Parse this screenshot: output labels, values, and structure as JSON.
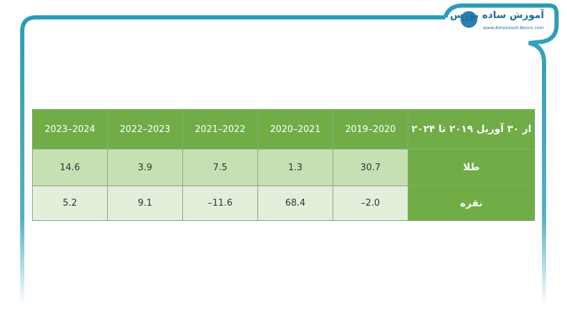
{
  "header": {
    "logo_title": "آموزش ساده بورس",
    "logo_url": "www.Amoozesh-Boors.com"
  },
  "table": {
    "columns": [
      "از ۳۰ آوریل ۲۰۱۹ تا ۲۰۲۴",
      "2019–2020",
      "2020–2021",
      "2021–2022",
      "2022–2023",
      "2023–2024"
    ],
    "rows": [
      [
        "طلا",
        "30.7",
        "1.3",
        "7.5",
        "3.9",
        "14.6"
      ],
      [
        "نقره",
        "–2.0",
        "68.4",
        "–11.6",
        "9.1",
        "5.2"
      ]
    ]
  }
}
